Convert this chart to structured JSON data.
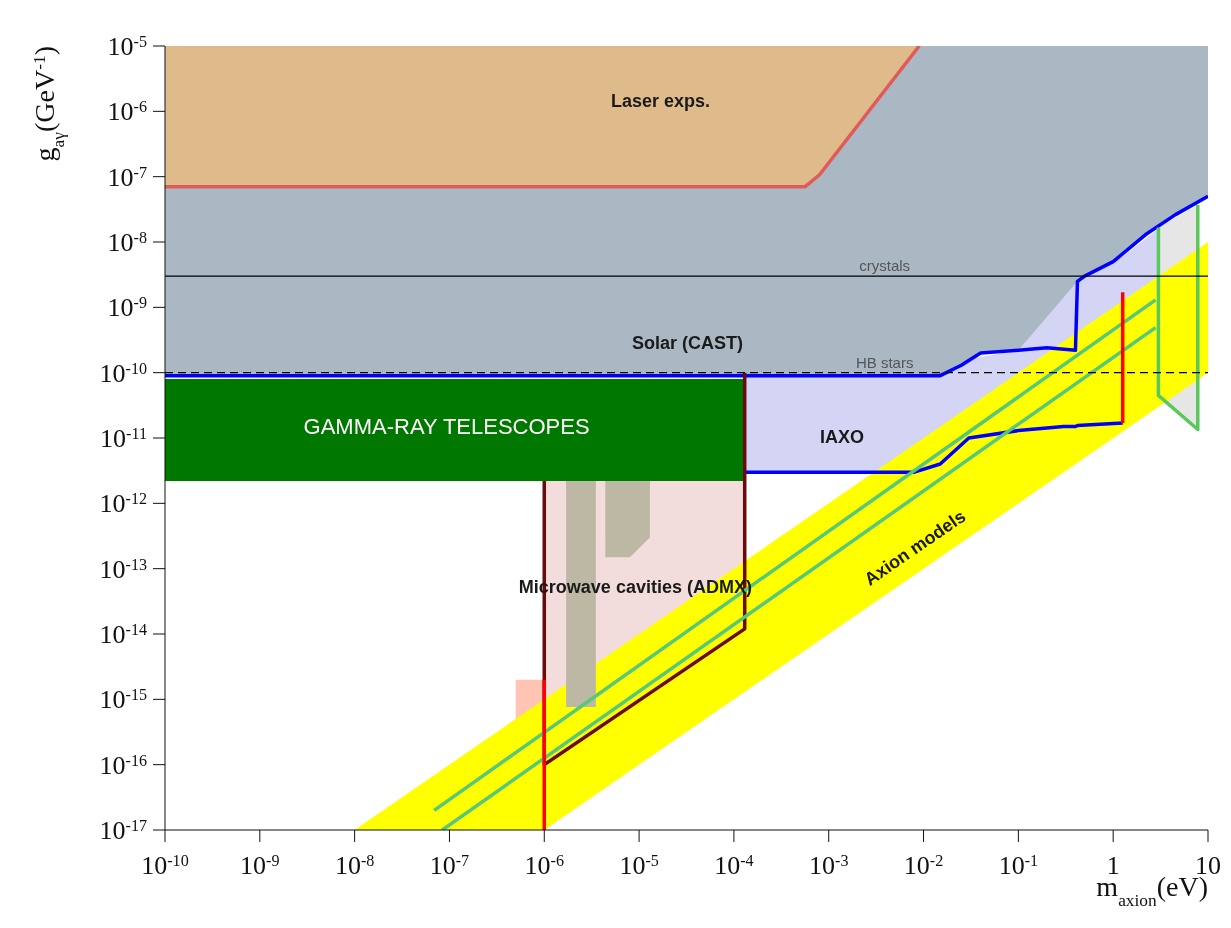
{
  "chart_data": {
    "type": "line",
    "xlabel": "m$_{axion}$(eV)",
    "ylabel": "g$_{aγ}$(GeV$^{-1}$)",
    "log": "xy",
    "xlim": [
      1e-10,
      10
    ],
    "ylim": [
      1e-17,
      1e-05
    ],
    "xticks": [
      {
        "value": 1e-10,
        "label": "10$^{-10}$"
      },
      {
        "value": 1e-09,
        "label": "10$^{-9}$"
      },
      {
        "value": 1e-08,
        "label": "10$^{-8}$"
      },
      {
        "value": 1e-07,
        "label": "10$^{-7}$"
      },
      {
        "value": 1e-06,
        "label": "10$^{-6}$"
      },
      {
        "value": 1e-05,
        "label": "10$^{-5}$"
      },
      {
        "value": 0.0001,
        "label": "10$^{-4}$"
      },
      {
        "value": 0.001,
        "label": "10$^{-3}$"
      },
      {
        "value": 0.01,
        "label": "10$^{-2}$"
      },
      {
        "value": 0.1,
        "label": "10$^{-1}$"
      },
      1,
      10
    ],
    "yticks": [
      {
        "value": 1e-17,
        "label": "10$^{-17}$"
      },
      {
        "value": 1e-16,
        "label": "10$^{-16}$"
      },
      {
        "value": 1e-15,
        "label": "10$^{-15}$"
      },
      {
        "value": 1e-14,
        "label": "10$^{-14}$"
      },
      {
        "value": 1e-13,
        "label": "10$^{-13}$"
      },
      {
        "value": 1e-12,
        "label": "10$^{-12}$"
      },
      {
        "value": 1e-11,
        "label": "10$^{-11}$"
      },
      {
        "value": 1e-10,
        "label": "10$^{-10}$"
      },
      {
        "value": 1e-09,
        "label": "10$^{-9}$"
      },
      {
        "value": 1e-08,
        "label": "10$^{-8}$"
      },
      {
        "value": 1e-07,
        "label": "10$^{-7}$"
      },
      {
        "value": 1e-06,
        "label": "10$^{-6}$"
      },
      {
        "value": 1e-05,
        "label": "10$^{-5}$"
      }
    ],
    "series": [
      {
        "color": "#aab8c4",
        "x": [
          1e-10,
          0.015,
          0.025,
          0.04,
          0.1,
          0.2,
          0.4,
          0.42,
          0.5,
          1,
          2.2,
          4.5,
          10
        ],
        "values": [
          null,
          null,
          null,
          null,
          null,
          null,
          null,
          null,
          null,
          null,
          null,
          null,
          null
        ],
        "lower": [
          9e-11,
          9e-11,
          1.3e-10,
          2e-10,
          2.2e-10,
          2.4e-10,
          2.2e-10,
          2.5e-09,
          3e-09,
          5e-09,
          1.3e-08,
          2.6e-08,
          5e-08
        ],
        "upper": [
          1e-05,
          1e-05,
          1e-05,
          1e-05,
          1e-05,
          1e-05,
          1e-05,
          1e-05,
          1e-05,
          1e-05,
          1e-05,
          1e-05,
          1e-05
        ]
      },
      {
        "color": "#dfba8a",
        "x": [
          1e-10,
          0.00056,
          0.0008,
          0.009
        ],
        "values": [
          null,
          null,
          null,
          null
        ],
        "lower": [
          7e-08,
          7e-08,
          1.07e-07,
          1e-05
        ],
        "upper": [
          1e-05,
          1e-05,
          1e-05,
          1e-05
        ]
      },
      {
        "color": "#e6e6e6",
        "x": [
          3,
          7.8
        ],
        "values": [
          null,
          null
        ],
        "lower": [
          4.5e-11,
          1.35e-11
        ],
        "upper": [
          1.66e-08,
          3.7e-08
        ]
      },
      {
        "color": "#d4d4f5",
        "x": [
          0.00013,
          0.008,
          0.015,
          0.03,
          0.1,
          0.42,
          1.26,
          3
        ],
        "values": [
          null,
          null,
          null,
          null,
          null,
          null,
          null,
          null
        ],
        "lower": [
          3e-12,
          3e-12,
          4e-12,
          1e-11,
          1.3e-11,
          1.55e-11,
          1.7e-11,
          4e-10
        ],
        "upper": [
          9e-11,
          9e-11,
          9e-11,
          1.6e-10,
          2.2e-10,
          2.5e-09,
          6e-09,
          1.6e-08
        ]
      },
      {
        "color": "#f2dcdc",
        "x": [
          1e-06,
          0.00013
        ],
        "values": [
          null,
          null
        ],
        "lower": [
          1e-16,
          1.2e-14
        ],
        "upper": [
          2.2e-12,
          2.2e-12
        ]
      },
      {
        "color": "#ffc4b4",
        "x": [
          5e-07,
          1e-06
        ],
        "values": [
          null,
          null
        ],
        "lower": [
          1e-17,
          1e-17
        ],
        "upper": [
          2e-15,
          2e-15
        ]
      },
      {
        "color": "#ffff00",
        "x": [
          1e-08,
          1e-06,
          10
        ],
        "values": [
          null,
          null,
          null
        ],
        "lower": [
          1e-17,
          1e-17,
          1e-10
        ],
        "upper": [
          1e-17,
          1e-15,
          1e-08
        ]
      },
      {
        "color": "#bdb8a4",
        "x": [
          1.7e-06,
          3.5e-06
        ],
        "values": [
          null,
          null
        ],
        "lower": [
          7.6e-16,
          7.6e-16
        ],
        "upper": [
          2.2e-12,
          2.2e-12
        ]
      },
      {
        "color": "#bdb8a4",
        "x": [
          4.4e-06,
          8e-06,
          1.3e-05
        ],
        "values": [
          null,
          null,
          null
        ],
        "lower": [
          1.5e-13,
          1.5e-13,
          3e-13
        ],
        "upper": [
          2.2e-12,
          2.2e-12,
          2.2e-12
        ]
      },
      {
        "color": "#007800",
        "x": [
          1e-10,
          0.00013
        ],
        "values": [
          null,
          null
        ],
        "lower": [
          2.2e-12,
          2.2e-12
        ],
        "upper": [
          8e-11,
          8e-11
        ]
      },
      {
        "color": "#0000ff",
        "x": [
          1e-10,
          0.00056,
          0.0008,
          0.009,
          0.015,
          0.025,
          0.04,
          0.1,
          0.2,
          0.4,
          0.42,
          0.5,
          1,
          2.2,
          4.5,
          10
        ],
        "values": [
          9e-11,
          9e-11,
          9e-11,
          9e-11,
          9e-11,
          1.3e-10,
          2e-10,
          2.2e-10,
          2.4e-10,
          2.2e-10,
          2.5e-09,
          3e-09,
          5e-09,
          1.3e-08,
          2.6e-08,
          5e-08
        ]
      },
      {
        "color": "#0000ff",
        "x": [
          0.00013,
          0.008,
          0.015,
          0.03,
          0.1,
          0.3,
          0.4,
          0.42,
          1.26
        ],
        "values": [
          3e-12,
          3e-12,
          4e-12,
          1e-11,
          1.3e-11,
          1.5e-11,
          1.5e-11,
          1.55e-11,
          1.7e-11
        ]
      },
      {
        "color": "#e05a5a",
        "x": [
          1e-10,
          0.00056,
          0.0008,
          0.009
        ],
        "values": [
          7e-08,
          7e-08,
          1.07e-07,
          1e-05
        ]
      },
      {
        "color": "#6b0a0a",
        "x": [
          1e-06,
          1e-06,
          0.00013,
          0.00013
        ],
        "values": [
          2.2e-12,
          1e-16,
          1.2e-14,
          1e-10
        ]
      },
      {
        "color": "#55c87a",
        "x": [
          6.9e-08,
          2.8
        ],
        "values": [
          2e-17,
          1.3e-09
        ]
      },
      {
        "color": "#55c87a",
        "x": [
          8.4e-08,
          2.8
        ],
        "values": [
          1e-17,
          4.9e-10
        ]
      },
      {
        "color": "#ff0000",
        "x": [
          1e-06,
          1e-06
        ],
        "values": [
          1e-17,
          2e-15
        ]
      },
      {
        "color": "#ff0000",
        "x": [
          1.26,
          1.26
        ],
        "values": [
          1.7e-11,
          1.7e-09
        ]
      },
      {
        "color": "#5ac85a",
        "x": [
          3,
          3,
          7.8,
          7.8
        ],
        "values": [
          1.66e-08,
          4.5e-11,
          1.35e-11,
          3.7e-08
        ]
      }
    ],
    "ref_lines": [
      {
        "axis": "y",
        "value": 3e-09,
        "label": "crystals",
        "color": "#000000",
        "line_style": "solid"
      },
      {
        "axis": "y",
        "value": 1e-10,
        "label": "HB stars",
        "color": "#000000",
        "line_style": "dashed"
      }
    ],
    "annotations": [
      "Laser exps.",
      "Solar (CAST)",
      "IAXO",
      "GAMMA-RAY TELESCOPES",
      "Microwave cavities (ADMX)",
      "Axion models"
    ]
  }
}
